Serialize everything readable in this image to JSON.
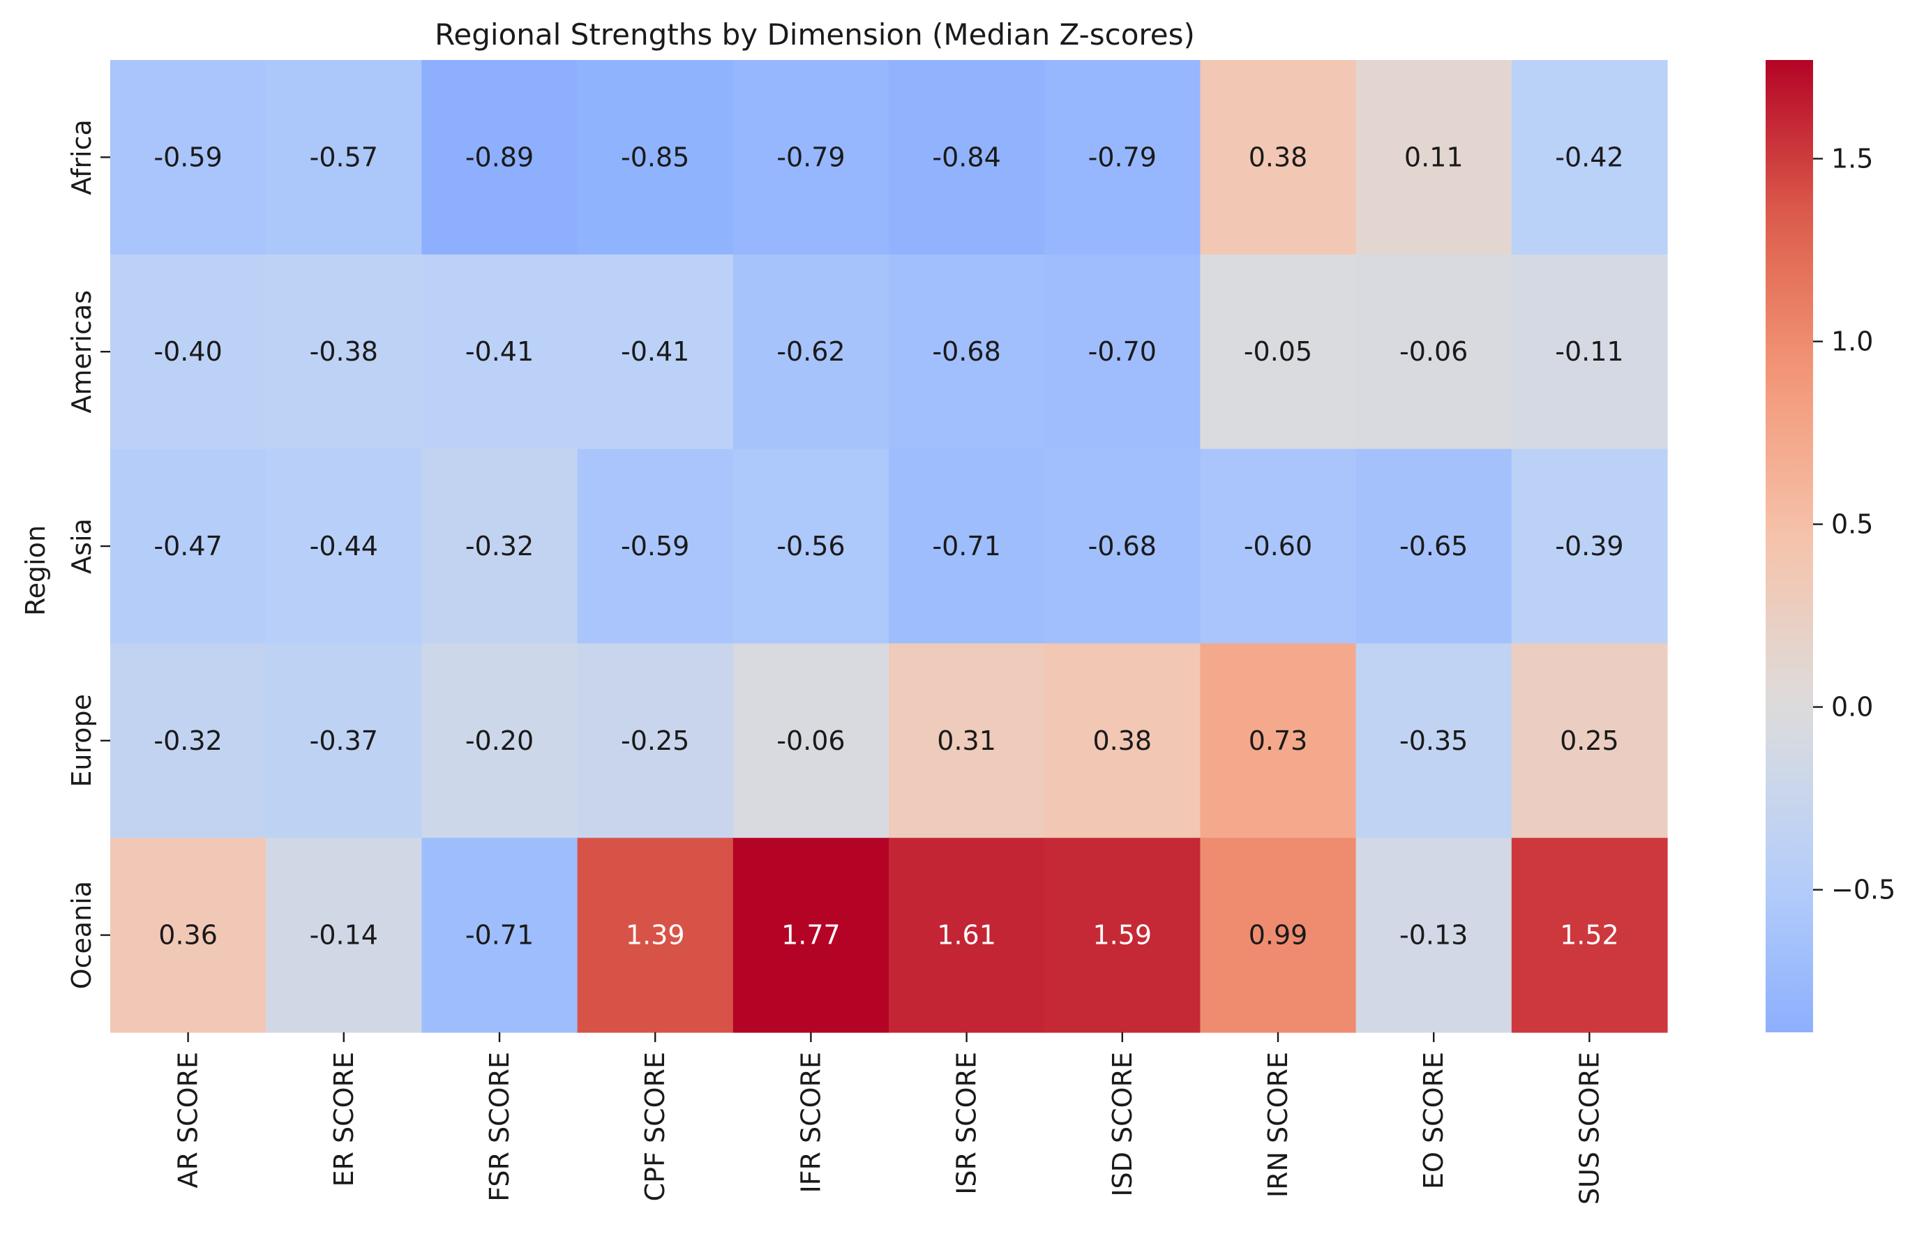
{
  "chart_data": {
    "type": "heatmap",
    "title": "Regional Strengths by Dimension (Median Z-scores)",
    "xlabel": "",
    "ylabel": "Region",
    "columns": [
      "AR SCORE",
      "ER SCORE",
      "FSR SCORE",
      "CPF SCORE",
      "IFR SCORE",
      "ISR SCORE",
      "ISD SCORE",
      "IRN SCORE",
      "EO SCORE",
      "SUS SCORE"
    ],
    "rows": [
      "Africa",
      "Americas",
      "Asia",
      "Europe",
      "Oceania"
    ],
    "values": [
      [
        -0.59,
        -0.57,
        -0.89,
        -0.85,
        -0.79,
        -0.84,
        -0.79,
        0.38,
        0.11,
        -0.42
      ],
      [
        -0.4,
        -0.38,
        -0.41,
        -0.41,
        -0.62,
        -0.68,
        -0.7,
        -0.05,
        -0.06,
        -0.11
      ],
      [
        -0.47,
        -0.44,
        -0.32,
        -0.59,
        -0.56,
        -0.71,
        -0.68,
        -0.6,
        -0.65,
        -0.39
      ],
      [
        -0.32,
        -0.37,
        -0.2,
        -0.25,
        -0.06,
        0.31,
        0.38,
        0.73,
        -0.35,
        0.25
      ],
      [
        0.36,
        -0.14,
        -0.71,
        1.39,
        1.77,
        1.61,
        1.59,
        0.99,
        -0.13,
        1.52
      ]
    ],
    "value_format": "2 decimals",
    "colormap": "coolwarm",
    "center": 0,
    "color_range": [
      -0.89,
      1.77
    ],
    "colorbar": {
      "ticks": [
        -0.5,
        0.0,
        0.5,
        1.0,
        1.5
      ],
      "tick_labels": [
        "−0.5",
        "0.0",
        "0.5",
        "1.0",
        "1.5"
      ]
    },
    "grid": false,
    "legend": "colorbar-right"
  }
}
